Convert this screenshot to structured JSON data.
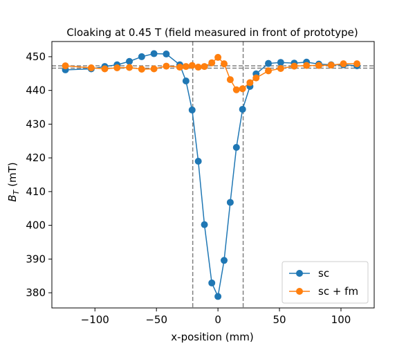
{
  "chart_data": {
    "type": "line",
    "title": "Cloaking at 0.45 T (field measured in front of prototype)",
    "xlabel": "x-position (mm)",
    "ylabel_main": "B",
    "ylabel_sub": "T",
    "ylabel_unit": " (mT)",
    "xlim": [
      -135,
      127
    ],
    "ylim": [
      375.5,
      454.5
    ],
    "xticks": [
      -100,
      -50,
      0,
      50,
      100
    ],
    "xtick_labels": [
      "−100",
      "−50",
      "0",
      "50",
      "100"
    ],
    "yticks": [
      380,
      390,
      400,
      410,
      420,
      430,
      440,
      450
    ],
    "ytick_labels": [
      "380",
      "390",
      "400",
      "410",
      "420",
      "430",
      "440",
      "450"
    ],
    "grid": false,
    "legend_position": "lower right",
    "reference_lines": {
      "vertical_x": [
        -20.5,
        20.5
      ],
      "horizontal_y": [
        446.6,
        447.3
      ],
      "color": "#808080",
      "style": "dashed"
    },
    "series": [
      {
        "name": "sc",
        "color": "#1f77b4",
        "x": [
          -124,
          -103,
          -92,
          -82,
          -72,
          -62,
          -52,
          -42,
          -31,
          -26,
          -21,
          -16,
          -11,
          -5,
          0,
          5,
          10,
          15,
          20,
          26,
          31,
          41,
          51,
          62,
          72,
          82,
          92,
          102,
          113
        ],
        "y": [
          446.1,
          446.4,
          447.1,
          447.6,
          448.6,
          450.0,
          450.9,
          450.8,
          447.6,
          442.8,
          434.2,
          419.0,
          400.2,
          382.9,
          378.9,
          389.6,
          406.8,
          423.1,
          434.4,
          441.2,
          444.9,
          448.0,
          448.3,
          448.1,
          448.4,
          447.8,
          447.6,
          447.6,
          447.3
        ]
      },
      {
        "name": "sc + fm",
        "color": "#ff7f0e",
        "x": [
          -124,
          -103,
          -92,
          -82,
          -72,
          -62,
          -52,
          -42,
          -31,
          -26,
          -21,
          -16,
          -11,
          -5,
          0,
          5,
          10,
          15,
          20,
          26,
          31,
          41,
          51,
          62,
          72,
          82,
          92,
          102,
          113
        ],
        "y": [
          447.3,
          446.7,
          446.4,
          446.7,
          446.8,
          446.3,
          446.4,
          447.2,
          446.9,
          447.1,
          447.4,
          446.9,
          447.1,
          448.2,
          449.8,
          447.9,
          443.2,
          440.2,
          440.5,
          442.3,
          443.7,
          445.8,
          446.5,
          447.2,
          447.4,
          447.4,
          447.5,
          447.9,
          447.9
        ]
      }
    ]
  }
}
